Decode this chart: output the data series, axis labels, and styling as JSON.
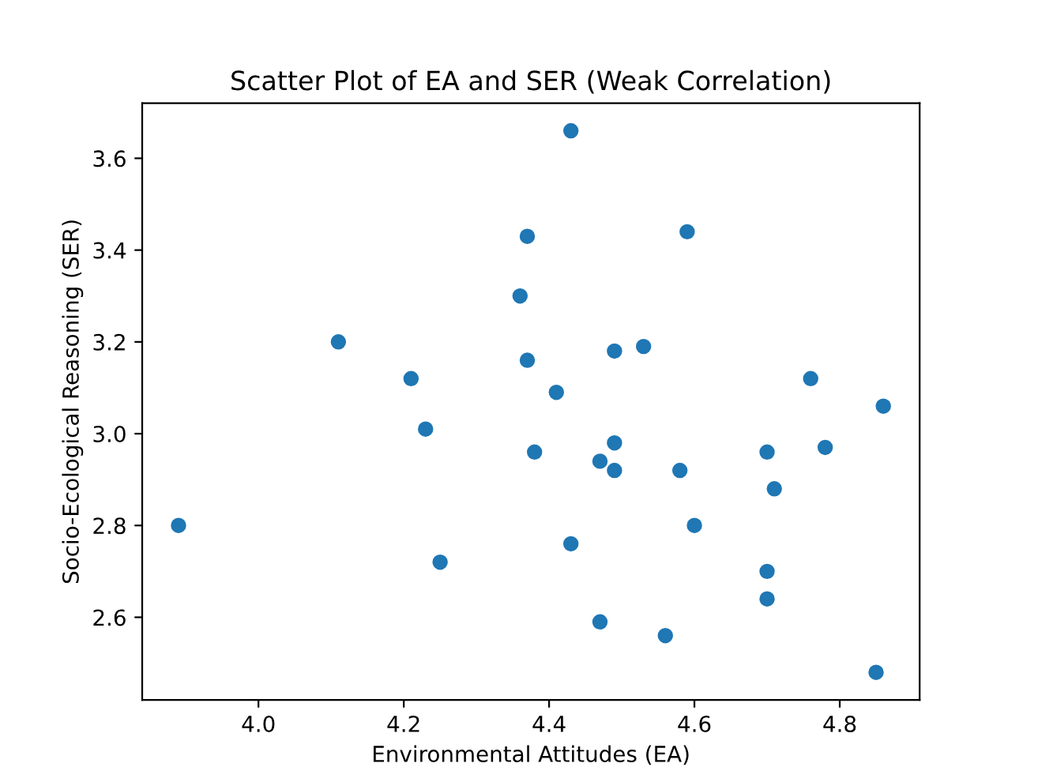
{
  "chart_data": {
    "type": "scatter",
    "title": "Scatter Plot of EA and SER (Weak Correlation)",
    "xlabel": "Environmental Attitudes (EA)",
    "ylabel": "Socio-Ecological Reasoning (SER)",
    "x": [
      3.89,
      4.11,
      4.21,
      4.23,
      4.25,
      4.43,
      4.37,
      4.59,
      4.36,
      4.37,
      4.49,
      4.53,
      4.41,
      4.76,
      4.86,
      4.38,
      4.49,
      4.47,
      4.49,
      4.58,
      4.7,
      4.78,
      4.71,
      4.6,
      4.43,
      4.7,
      4.7,
      4.47,
      4.56,
      4.85
    ],
    "series": [
      {
        "color": "#1f77b4",
        "values": [
          2.8,
          3.2,
          3.12,
          3.01,
          2.72,
          3.66,
          3.43,
          3.44,
          3.3,
          3.16,
          3.18,
          3.19,
          3.09,
          3.12,
          3.06,
          2.96,
          2.98,
          2.94,
          2.92,
          2.92,
          2.96,
          2.97,
          2.88,
          2.8,
          2.76,
          2.7,
          2.64,
          2.59,
          2.56,
          2.48
        ]
      }
    ],
    "xlim": [
      3.84,
      4.91
    ],
    "ylim": [
      2.42,
      3.72
    ],
    "xticks": [
      {
        "value": 4.0,
        "label": "4.0"
      },
      4.2,
      4.4,
      4.6,
      4.8
    ],
    "yticks": [
      2.6,
      2.8,
      {
        "value": 3.0,
        "label": "3.0"
      },
      3.2,
      3.4,
      3.6
    ],
    "marker": "circle",
    "grid": false,
    "legend": false
  }
}
